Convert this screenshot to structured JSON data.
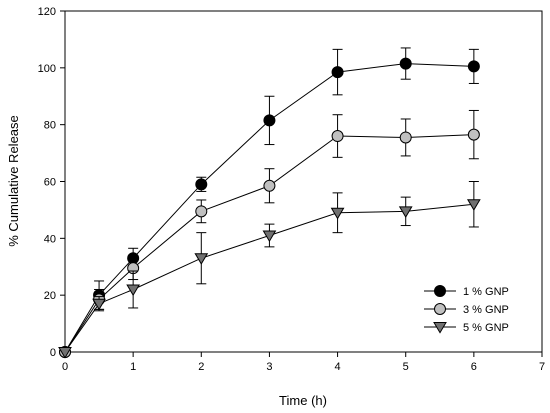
{
  "chart_data": {
    "type": "line",
    "title": "",
    "xlabel": "Time (h)",
    "ylabel": "% Cumulative Release",
    "xlim": [
      0,
      7
    ],
    "ylim": [
      0,
      120
    ],
    "xticks": [
      "0",
      "1",
      "2",
      "3",
      "4",
      "5",
      "6",
      "7"
    ],
    "yticks": [
      "0",
      "20",
      "40",
      "60",
      "80",
      "100",
      "120"
    ],
    "grid": false,
    "legend_position": "bottom-right",
    "x": [
      0,
      0.5,
      1,
      2,
      3,
      4,
      5,
      6
    ],
    "series": [
      {
        "name": "1 % GNP",
        "marker": "circle",
        "fill": "#000000",
        "values": [
          0,
          20,
          33,
          59,
          81.5,
          98.5,
          101.5,
          100.5
        ],
        "errors": [
          0,
          5,
          3.5,
          2.5,
          8.5,
          8,
          5.5,
          6
        ]
      },
      {
        "name": "3 % GNP",
        "marker": "circle",
        "fill": "#c0c0c0",
        "values": [
          0,
          18.5,
          29.5,
          49.5,
          58.5,
          76,
          75.5,
          76.5
        ],
        "errors": [
          0,
          3.5,
          4,
          4,
          6,
          7.5,
          6.5,
          8.5
        ]
      },
      {
        "name": "5 % GNP",
        "marker": "triangle-down",
        "fill": "#707070",
        "values": [
          0,
          17,
          22,
          33,
          41,
          49,
          49.5,
          52
        ],
        "errors": [
          0,
          2.5,
          6.5,
          9,
          4,
          7,
          5,
          8
        ]
      }
    ]
  }
}
